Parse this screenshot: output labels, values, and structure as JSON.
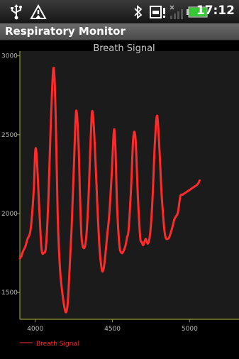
{
  "status_bar": {
    "time": "17:12",
    "icons": [
      "usb-icon",
      "warning-icon",
      "bluetooth-icon",
      "sim-alert-icon",
      "signal-icon",
      "battery-icon"
    ]
  },
  "app": {
    "title": "Respiratory Monitor"
  },
  "chart_data": {
    "type": "line",
    "title": "Breath Signal",
    "xlabel": "",
    "ylabel": "",
    "x_ticks": [
      4000,
      4500,
      5000
    ],
    "y_ticks": [
      1500,
      2000,
      2500,
      3000
    ],
    "xlim": [
      3900,
      5320
    ],
    "ylim": [
      1330,
      3030
    ],
    "grid": false,
    "legend": "bottom-left",
    "series": [
      {
        "name": "Breath Signal",
        "color": "#ff2a2a",
        "x": [
          3900,
          3910,
          3920,
          3935,
          3950,
          3970,
          3990,
          4000,
          4010,
          4025,
          4040,
          4055,
          4070,
          4085,
          4100,
          4115,
          4125,
          4135,
          4145,
          4160,
          4175,
          4190,
          4200,
          4210,
          4220,
          4235,
          4250,
          4265,
          4280,
          4290,
          4300,
          4315,
          4330,
          4345,
          4360,
          4370,
          4385,
          4400,
          4415,
          4430,
          4440,
          4450,
          4465,
          4480,
          4495,
          4510,
          4520,
          4530,
          4545,
          4560,
          4575,
          4585,
          4595,
          4605,
          4620,
          4635,
          4650,
          4665,
          4680,
          4690,
          4700,
          4715,
          4730,
          4745,
          4760,
          4775,
          4790,
          4805,
          4820,
          4840,
          4860,
          4875,
          4890,
          4900,
          4910,
          4925,
          4940,
          4955,
          4970,
          4985,
          5000,
          5015,
          5030,
          5045,
          5055,
          5065
        ],
        "y": [
          1715,
          1730,
          1760,
          1790,
          1840,
          1900,
          2150,
          2400,
          2350,
          2050,
          1780,
          1750,
          1800,
          2100,
          2550,
          2900,
          2850,
          2500,
          2000,
          1650,
          1500,
          1400,
          1375,
          1430,
          1600,
          1900,
          2300,
          2650,
          2450,
          2100,
          1850,
          1780,
          1850,
          2100,
          2500,
          2650,
          2450,
          2100,
          1800,
          1650,
          1640,
          1700,
          1850,
          2000,
          2250,
          2530,
          2400,
          2050,
          1800,
          1750,
          1770,
          1800,
          1850,
          1900,
          2150,
          2480,
          2470,
          2100,
          1850,
          1820,
          1800,
          1840,
          1810,
          1880,
          2100,
          2450,
          2620,
          2400,
          2100,
          1870,
          1840,
          1870,
          1920,
          1960,
          1980,
          2010,
          2110,
          2120,
          2130,
          2140,
          2150,
          2160,
          2170,
          2180,
          2190,
          2210
        ]
      }
    ]
  }
}
